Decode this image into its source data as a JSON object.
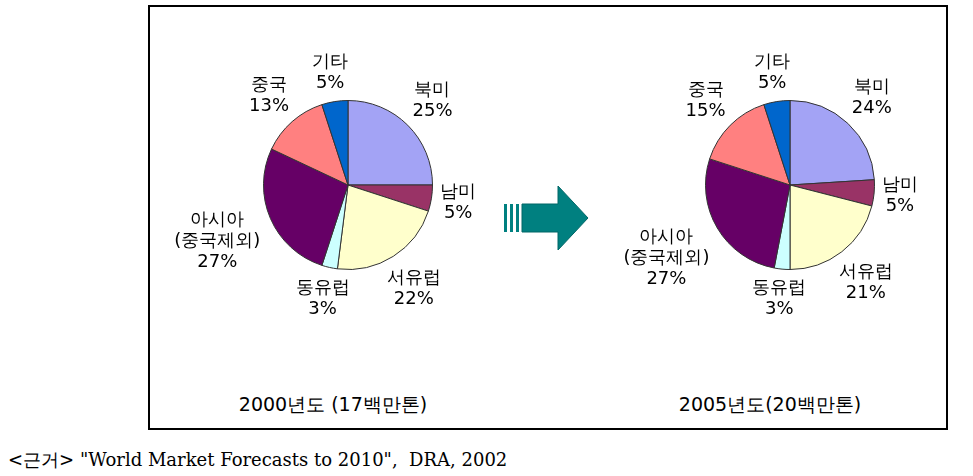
{
  "chart_data": [
    {
      "type": "pie",
      "title": "2000년도 (17백만톤)",
      "categories": [
        "북미",
        "남미",
        "서유럽",
        "동유럽",
        "아시아\n(중국제외)",
        "중국",
        "기타"
      ],
      "values": [
        25,
        5,
        22,
        3,
        27,
        13,
        5
      ],
      "value_labels": [
        "25%",
        "5%",
        "22%",
        "3%",
        "27%",
        "13%",
        "5%"
      ],
      "colors": [
        "#a3a3f5",
        "#993366",
        "#ffffcc",
        "#ccffff",
        "#660066",
        "#ff8080",
        "#0066cc"
      ],
      "data_labels": true
    },
    {
      "type": "pie",
      "title": "2005년도(20백만톤)",
      "categories": [
        "북미",
        "남미",
        "서유럽",
        "동유럽",
        "아시아\n(중국제외)",
        "중국",
        "기타"
      ],
      "values": [
        24,
        5,
        21,
        3,
        27,
        15,
        5
      ],
      "value_labels": [
        "24%",
        "5%",
        "21%",
        "3%",
        "27%",
        "15%",
        "5%"
      ],
      "colors": [
        "#a3a3f5",
        "#993366",
        "#ffffcc",
        "#ccffff",
        "#660066",
        "#ff8080",
        "#0066cc"
      ],
      "data_labels": true
    }
  ],
  "source": "<근거> \"World Market Forecasts to 2010\",  DRA, 2002"
}
